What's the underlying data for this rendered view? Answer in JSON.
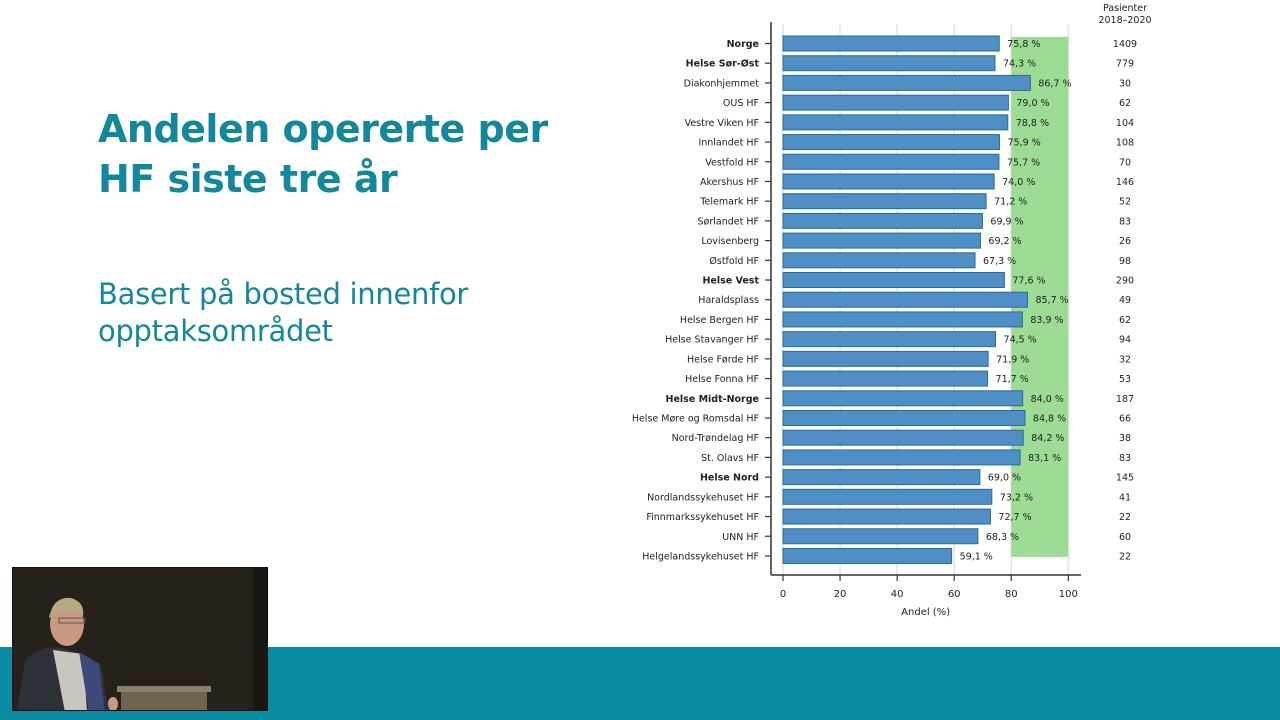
{
  "slide": {
    "title": "Andelen opererte per HF siste tre år",
    "subtitle": "Basert på bosted innenfor opptaksområdet",
    "colors": {
      "accent_teal": "#14879a",
      "band_teal": "#0c8ca3",
      "bar": "#4f8fc5",
      "bar_border": "#2b6a9c",
      "target_zone": "#9cdc94"
    }
  },
  "video_overlay": {
    "description": "speaker webcam"
  },
  "chart_data": {
    "type": "bar",
    "orientation": "horizontal",
    "title": "",
    "xlabel": "Andel (%)",
    "ylabel": "",
    "xlim": [
      0,
      100
    ],
    "xticks": [
      0,
      20,
      40,
      60,
      80,
      100
    ],
    "grid": true,
    "target_zone": {
      "from": 80,
      "to": 100,
      "color": "#9cdc94"
    },
    "right_column_header": "Pasienter 2018–2020",
    "categories": [
      "Norge",
      "Helse Sør-Øst",
      "Diakonhjemmet",
      "OUS HF",
      "Vestre Viken HF",
      "Innlandet HF",
      "Vestfold HF",
      "Akershus HF",
      "Telemark HF",
      "Sørlandet HF",
      "Lovisenberg",
      "Østfold HF",
      "Helse Vest",
      "Haraldsplass",
      "Helse Bergen HF",
      "Helse Stavanger HF",
      "Helse Førde HF",
      "Helse Fonna HF",
      "Helse Midt-Norge",
      "Helse Møre og Romsdal HF",
      "Nord-Trøndelag HF",
      "St. Olavs HF",
      "Helse Nord",
      "Nordlandssykehuset HF",
      "Finnmarkssykehuset HF",
      "UNN HF",
      "Helgelandssykehuset HF"
    ],
    "bold_categories": [
      "Norge",
      "Helse Sør-Øst",
      "Helse Vest",
      "Helse Midt-Norge",
      "Helse Nord"
    ],
    "values": [
      75.8,
      74.3,
      86.7,
      79.0,
      78.8,
      75.9,
      75.7,
      74.0,
      71.2,
      69.9,
      69.2,
      67.3,
      77.6,
      85.7,
      83.9,
      74.5,
      71.9,
      71.7,
      84.0,
      84.8,
      84.2,
      83.1,
      69.0,
      73.2,
      72.7,
      68.3,
      59.1
    ],
    "value_labels": [
      "75,8 %",
      "74,3 %",
      "86,7 %",
      "79,0 %",
      "78,8 %",
      "75,9 %",
      "75,7 %",
      "74,0 %",
      "71,2 %",
      "69,9 %",
      "69,2 %",
      "67,3 %",
      "77,6 %",
      "85,7 %",
      "83,9 %",
      "74,5 %",
      "71,9 %",
      "71,7 %",
      "84,0 %",
      "84,8 %",
      "84,2 %",
      "83,1 %",
      "69,0 %",
      "73,2 %",
      "72,7 %",
      "68,3 %",
      "59,1 %"
    ],
    "patients": [
      1409,
      779,
      30,
      62,
      104,
      108,
      70,
      146,
      52,
      83,
      26,
      98,
      290,
      49,
      62,
      94,
      32,
      53,
      187,
      66,
      38,
      83,
      145,
      41,
      22,
      60,
      22
    ]
  }
}
